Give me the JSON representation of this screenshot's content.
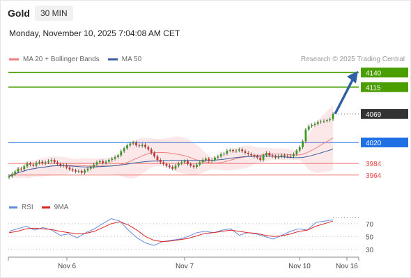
{
  "header": {
    "title": "Gold",
    "timeframe": "30 MIN",
    "datetime": "Monday, November 10, 2025 7:04:08 AM CET"
  },
  "legend": {
    "ma20_label": "MA 20 + Bollinger Bands",
    "ma50_label": "MA 50",
    "credit": "Research © 2025 Trading Central"
  },
  "colors": {
    "green": "#4a9e00",
    "blue": "#1f6fe5",
    "red": "#e84a4a",
    "ma20": "#f08080",
    "ma50": "#3a5fa0",
    "price_box": "#333333",
    "arrow": "#2f5fa5",
    "rsi": "#6688dd",
    "rsi_ma": "#dd2222"
  },
  "chart_data": [
    {
      "type": "candlestick",
      "ylim": [
        3940,
        4150
      ],
      "x_ticks": [
        "Nov 6",
        "Nov 7",
        "Nov 10",
        "Nov 16"
      ],
      "levels": [
        {
          "value": 4140,
          "label": "4140",
          "kind": "resistance"
        },
        {
          "value": 4115,
          "label": "4115",
          "kind": "resistance"
        },
        {
          "value": 4069,
          "label": "4069",
          "kind": "current"
        },
        {
          "value": 4020,
          "label": "4020",
          "kind": "pivot"
        },
        {
          "value": 3984,
          "label": "3984",
          "kind": "support"
        },
        {
          "value": 3964,
          "label": "3964",
          "kind": "support"
        }
      ],
      "close": [
        3962,
        3966,
        3970,
        3975,
        3974,
        3979,
        3984,
        3982,
        3980,
        3985,
        3987,
        3984,
        3986,
        3988,
        3990,
        3986,
        3983,
        3980,
        3981,
        3977,
        3974,
        3972,
        3970,
        3971,
        3968,
        3972,
        3975,
        3978,
        3982,
        3986,
        3988,
        3985,
        3987,
        3990,
        3992,
        3995,
        3998,
        4005,
        4010,
        4015,
        4018,
        4020,
        4015,
        4014,
        4016,
        4012,
        4008,
        4002,
        3996,
        3990,
        3986,
        3983,
        3980,
        3978,
        3975,
        3980,
        3984,
        3986,
        3988,
        3983,
        3980,
        3978,
        3982,
        3986,
        3990,
        3992,
        3988,
        3990,
        3994,
        3996,
        4000,
        4001,
        4006,
        4007,
        4005,
        4006,
        4008,
        4005,
        4002,
        4000,
        3998,
        3996,
        3994,
        3990,
        3998,
        4002,
        3998,
        3996,
        3994,
        3996,
        3998,
        3996,
        3997,
        3996,
        4000,
        4006,
        4012,
        4022,
        4042,
        4048,
        4050,
        4052,
        4055,
        4056,
        4057,
        4058,
        4060,
        4069
      ],
      "macro_anchors": [
        {
          "at": 0,
          "value": 3962
        },
        {
          "at": 10,
          "value": 3983
        },
        {
          "at": 20,
          "value": 3975
        },
        {
          "at": 30,
          "value": 3986
        },
        {
          "at": 40,
          "value": 4016
        },
        {
          "at": 55,
          "value": 3978
        },
        {
          "at": 70,
          "value": 4000
        },
        {
          "at": 85,
          "value": 4000
        },
        {
          "at": 95,
          "value": 3996
        },
        {
          "at": 100,
          "value": 4047
        },
        {
          "at": 107,
          "value": 4069
        }
      ]
    },
    {
      "type": "line",
      "name": "RSI",
      "ylim": [
        20,
        85
      ],
      "y_ticks": [
        70,
        50,
        30
      ],
      "series": [
        {
          "name": "RSI",
          "anchors": [
            58,
            62,
            66,
            60,
            64,
            60,
            52,
            54,
            48,
            56,
            62,
            70,
            78,
            74,
            60,
            48,
            40,
            36,
            42,
            44,
            46,
            50,
            56,
            58,
            56,
            60,
            62,
            52,
            56,
            54,
            50,
            46,
            52,
            58,
            62,
            60,
            72,
            74,
            76
          ]
        },
        {
          "name": "9MA",
          "anchors": [
            56,
            58,
            62,
            63,
            62,
            61,
            58,
            56,
            54,
            55,
            58,
            64,
            70,
            73,
            68,
            60,
            50,
            44,
            42,
            43,
            45,
            47,
            51,
            55,
            56,
            58,
            60,
            58,
            56,
            55,
            52,
            50,
            51,
            54,
            58,
            60,
            66,
            70,
            74
          ]
        }
      ]
    }
  ]
}
